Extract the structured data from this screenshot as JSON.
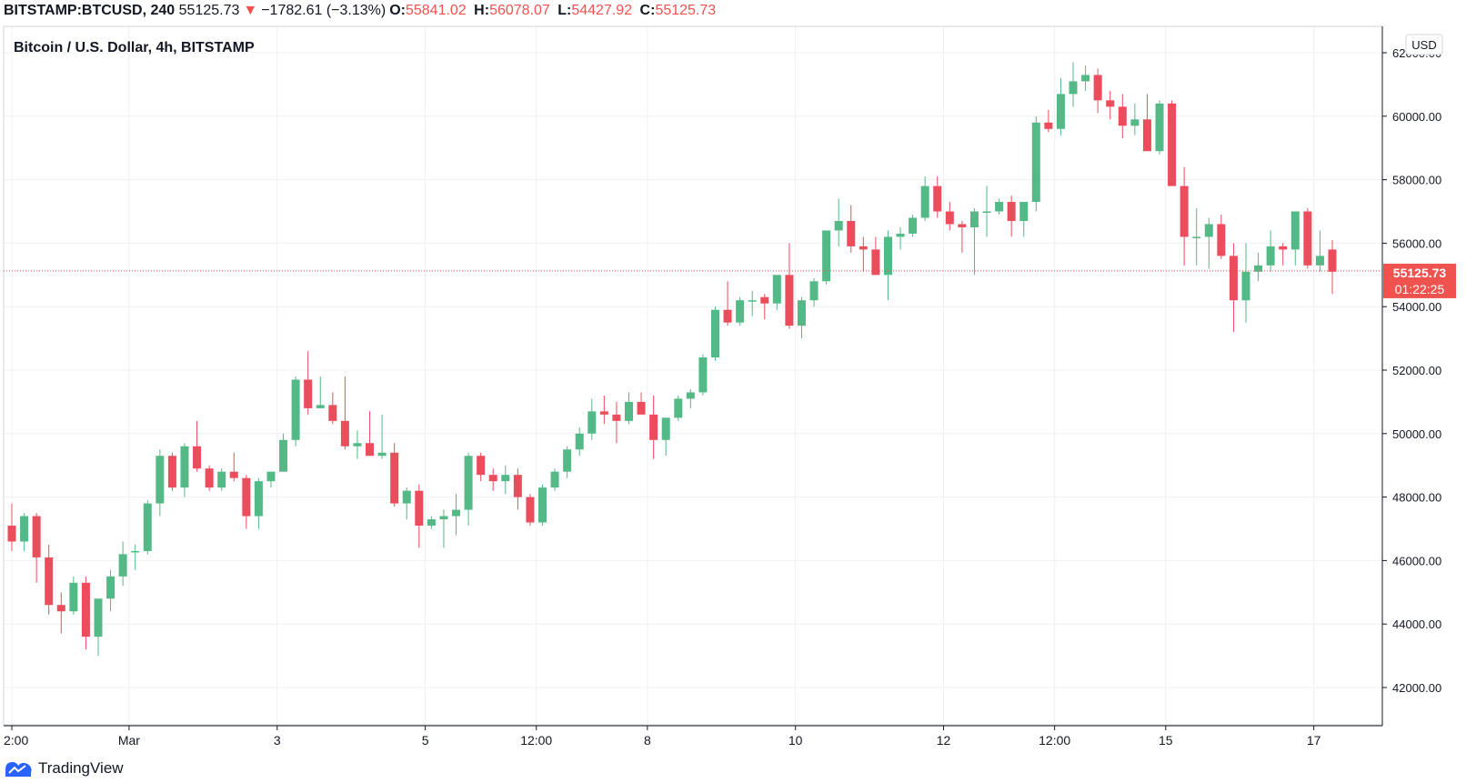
{
  "header": {
    "symbol": "BITSTAMP:BTCUSD, 240",
    "last": "55125.73",
    "change_arrow": "▼",
    "change": "−1782.61 (−3.13%)",
    "o_label": "O:",
    "o_value": "55841.02",
    "h_label": "H:",
    "h_value": "56078.07",
    "l_label": "L:",
    "l_value": "54427.92",
    "c_label": "C:",
    "c_value": "55125.73"
  },
  "legend_title": "Bitcoin / U.S. Dollar, 4h, BITSTAMP",
  "currency_badge": "USD",
  "price_tag": {
    "price": "55125.73",
    "countdown": "01:22:25"
  },
  "brand": "TradingView",
  "colors": {
    "up": "#53b987",
    "down": "#eb4d5c",
    "last_line": "#ef5350",
    "grid": "#eef0f3",
    "axis_text": "#131722"
  },
  "chart_data": {
    "type": "candlestick",
    "title": "Bitcoin / U.S. Dollar, 4h, BITSTAMP",
    "ylim": [
      42000,
      62000
    ],
    "y_ticks": [
      "62000.00",
      "60000.00",
      "58000.00",
      "56000.00",
      "54000.00",
      "52000.00",
      "50000.00",
      "48000.00",
      "46000.00",
      "44000.00",
      "42000.00"
    ],
    "x_ticks": [
      {
        "label": "2:00",
        "index": 0
      },
      {
        "label": "Mar",
        "index": 9.5
      },
      {
        "label": "3",
        "index": 21.5
      },
      {
        "label": "5",
        "index": 33.5
      },
      {
        "label": "12:00",
        "index": 42.5
      },
      {
        "label": "8",
        "index": 51.5
      },
      {
        "label": "10",
        "index": 63.5
      },
      {
        "label": "12",
        "index": 75.5
      },
      {
        "label": "12:00",
        "index": 84.5
      },
      {
        "label": "15",
        "index": 93.5
      },
      {
        "label": "17",
        "index": 105.5
      }
    ],
    "last_price": 55125.73,
    "ohlc": [
      [
        47100,
        47800,
        46300,
        46600
      ],
      [
        46600,
        47500,
        46300,
        47400
      ],
      [
        47400,
        47500,
        45300,
        46100
      ],
      [
        46100,
        46500,
        44300,
        44600
      ],
      [
        44600,
        45000,
        43700,
        44400
      ],
      [
        44400,
        45500,
        44300,
        45300
      ],
      [
        45300,
        45500,
        43200,
        43600
      ],
      [
        43600,
        44800,
        43000,
        44800
      ],
      [
        44800,
        45700,
        44400,
        45500
      ],
      [
        45500,
        46600,
        45200,
        46200
      ],
      [
        46300,
        46500,
        45700,
        46300
      ],
      [
        46300,
        47900,
        46200,
        47800
      ],
      [
        47800,
        49500,
        47400,
        49300
      ],
      [
        49300,
        49400,
        48200,
        48300
      ],
      [
        48300,
        49700,
        48000,
        49600
      ],
      [
        49600,
        50400,
        48800,
        48900
      ],
      [
        48900,
        49000,
        48200,
        48300
      ],
      [
        48300,
        48900,
        48200,
        48800
      ],
      [
        48800,
        49400,
        48500,
        48600
      ],
      [
        48600,
        48700,
        47000,
        47400
      ],
      [
        47400,
        48600,
        47000,
        48500
      ],
      [
        48500,
        48800,
        48300,
        48800
      ],
      [
        48800,
        50000,
        48800,
        49800
      ],
      [
        49800,
        51800,
        49600,
        51700
      ],
      [
        51700,
        52600,
        50600,
        50800
      ],
      [
        50800,
        51800,
        50800,
        50900
      ],
      [
        50900,
        51300,
        50300,
        50400
      ],
      [
        50400,
        51800,
        49500,
        49600
      ],
      [
        49600,
        50100,
        49200,
        49700
      ],
      [
        49700,
        50700,
        49300,
        49300
      ],
      [
        49300,
        50600,
        49200,
        49400
      ],
      [
        49400,
        49700,
        47700,
        47800
      ],
      [
        47800,
        48300,
        47300,
        48200
      ],
      [
        48200,
        48400,
        46400,
        47100
      ],
      [
        47100,
        47400,
        47000,
        47300
      ],
      [
        47300,
        47600,
        46400,
        47400
      ],
      [
        47400,
        48100,
        46800,
        47600
      ],
      [
        47600,
        49400,
        47100,
        49300
      ],
      [
        49300,
        49400,
        48500,
        48700
      ],
      [
        48700,
        48900,
        48200,
        48500
      ],
      [
        48500,
        49000,
        48100,
        48700
      ],
      [
        48700,
        48900,
        47600,
        48000
      ],
      [
        48000,
        48100,
        47100,
        47200
      ],
      [
        47200,
        48400,
        47100,
        48300
      ],
      [
        48300,
        48900,
        48200,
        48800
      ],
      [
        48800,
        49600,
        48600,
        49500
      ],
      [
        49500,
        50200,
        49300,
        50000
      ],
      [
        50000,
        51100,
        49800,
        50700
      ],
      [
        50700,
        51200,
        50300,
        50600
      ],
      [
        50600,
        51000,
        49700,
        50400
      ],
      [
        50400,
        51300,
        50300,
        51000
      ],
      [
        51000,
        51300,
        50700,
        50600
      ],
      [
        50600,
        51200,
        49200,
        49800
      ],
      [
        49800,
        50500,
        49300,
        50500
      ],
      [
        50500,
        51200,
        50400,
        51100
      ],
      [
        51100,
        51400,
        50800,
        51300
      ],
      [
        51300,
        52500,
        51200,
        52400
      ],
      [
        52400,
        54000,
        52300,
        53900
      ],
      [
        53900,
        54800,
        53400,
        53500
      ],
      [
        53500,
        54300,
        53400,
        54200
      ],
      [
        54200,
        54500,
        53700,
        54200
      ],
      [
        54300,
        54400,
        53600,
        54100
      ],
      [
        54100,
        55000,
        53900,
        55000
      ],
      [
        55000,
        56000,
        53300,
        53400
      ],
      [
        53400,
        54300,
        53000,
        54200
      ],
      [
        54200,
        54900,
        54000,
        54800
      ],
      [
        54800,
        56400,
        54700,
        56400
      ],
      [
        56400,
        57400,
        55900,
        56700
      ],
      [
        56700,
        57200,
        55700,
        55900
      ],
      [
        55900,
        56200,
        55100,
        55800
      ],
      [
        55800,
        56200,
        55000,
        55000
      ],
      [
        55000,
        56400,
        54200,
        56200
      ],
      [
        56200,
        56500,
        55800,
        56300
      ],
      [
        56300,
        56900,
        56200,
        56800
      ],
      [
        56800,
        58100,
        56700,
        57800
      ],
      [
        57800,
        58100,
        56800,
        57000
      ],
      [
        57000,
        57300,
        56400,
        56600
      ],
      [
        56600,
        56700,
        55700,
        56500
      ],
      [
        56500,
        57100,
        55000,
        57000
      ],
      [
        57000,
        57800,
        56200,
        57000
      ],
      [
        57000,
        57400,
        56900,
        57300
      ],
      [
        57300,
        57500,
        56200,
        56700
      ],
      [
        56700,
        57300,
        56200,
        57300
      ],
      [
        57300,
        60000,
        57000,
        59800
      ],
      [
        59800,
        60200,
        59500,
        59600
      ],
      [
        59600,
        61200,
        59400,
        60700
      ],
      [
        60700,
        61700,
        60300,
        61100
      ],
      [
        61100,
        61600,
        60800,
        61300
      ],
      [
        61300,
        61500,
        60100,
        60500
      ],
      [
        60500,
        60800,
        59900,
        60300
      ],
      [
        60300,
        60700,
        59300,
        59700
      ],
      [
        59700,
        60400,
        59400,
        59900
      ],
      [
        59900,
        60700,
        58900,
        58900
      ],
      [
        58900,
        60500,
        58800,
        60400
      ],
      [
        60400,
        60500,
        57800,
        57800
      ],
      [
        57800,
        58400,
        55300,
        56200
      ],
      [
        56200,
        57100,
        55300,
        56200
      ],
      [
        56200,
        56800,
        55200,
        56600
      ],
      [
        56600,
        56900,
        55500,
        55600
      ],
      [
        55600,
        56000,
        53200,
        54200
      ],
      [
        54200,
        56000,
        53500,
        55100
      ],
      [
        55100,
        55700,
        54800,
        55300
      ],
      [
        55300,
        56400,
        55100,
        55900
      ],
      [
        55900,
        56000,
        55300,
        55800
      ],
      [
        55800,
        57000,
        55300,
        57000
      ],
      [
        57000,
        57100,
        55200,
        55300
      ],
      [
        55300,
        56400,
        55100,
        55600
      ],
      [
        55800,
        56100,
        54400,
        55100
      ]
    ]
  }
}
